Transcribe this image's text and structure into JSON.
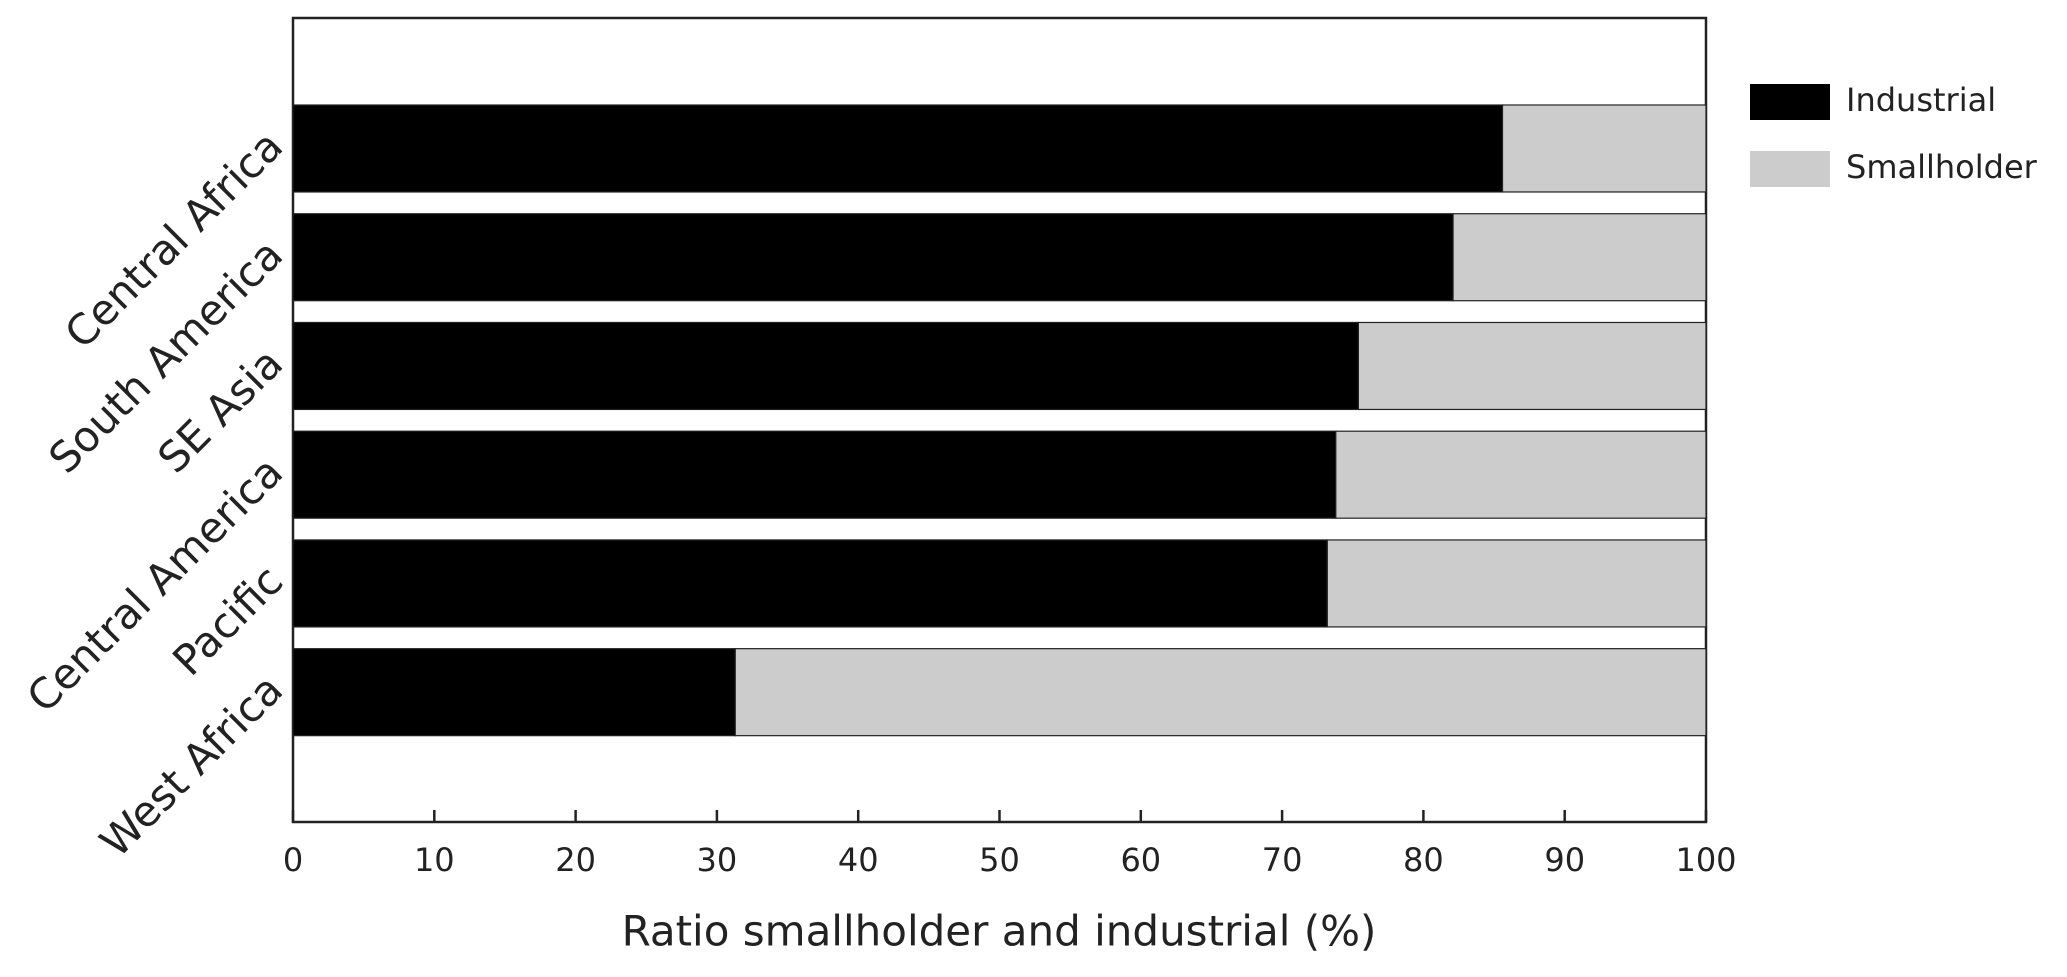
{
  "chart_data": {
    "type": "stacked-bar-horizontal",
    "x_label": "Ratio smallholder and industrial (%)",
    "categories": [
      "Central Africa",
      "South America",
      "SE Asia",
      "Central America",
      "Pacific",
      "West Africa"
    ],
    "series": [
      {
        "name": "Industrial",
        "color": "#000000",
        "values": [
          85.6,
          82.1,
          75.4,
          73.8,
          73.2,
          31.3
        ]
      },
      {
        "name": "Smallholder",
        "color": "#cccccc",
        "values": [
          14.4,
          17.9,
          24.6,
          26.2,
          26.8,
          68.7
        ]
      }
    ],
    "xlim": [
      0,
      100
    ],
    "xticks": [
      0,
      10,
      20,
      30,
      40,
      50,
      60,
      70,
      80,
      90,
      100
    ],
    "legend": "right"
  }
}
